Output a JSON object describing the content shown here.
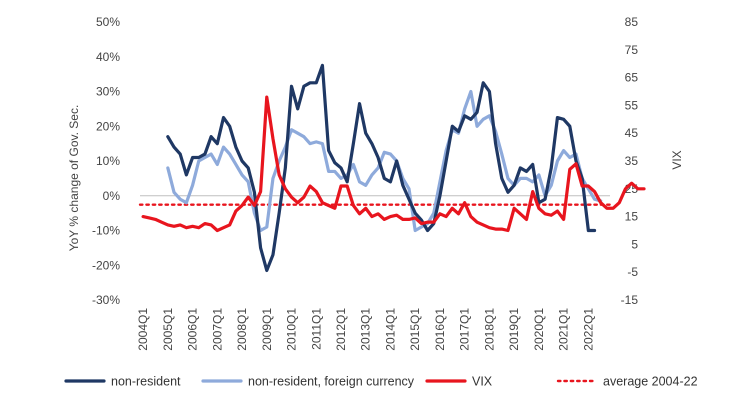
{
  "chart_data": {
    "type": "line",
    "ylabel_left": "YoY % change of Gov. Sec.",
    "ylabel_right": "VIX",
    "yticks_left": [
      "50%",
      "40%",
      "30%",
      "20%",
      "10%",
      "0%",
      "-10%",
      "-20%",
      "-30%"
    ],
    "yticks_left_values": [
      50,
      40,
      30,
      20,
      10,
      0,
      -10,
      -20,
      -30
    ],
    "yticks_right": [
      "85",
      "75",
      "65",
      "55",
      "45",
      "35",
      "25",
      "15",
      "5",
      "-5",
      "-15"
    ],
    "yticks_right_values": [
      85,
      75,
      65,
      55,
      45,
      35,
      25,
      15,
      5,
      -5,
      -15
    ],
    "ylim_left": [
      -30,
      50
    ],
    "ylim_right": [
      -15,
      85
    ],
    "xticks": [
      "2004Q1",
      "2005Q1",
      "2006Q1",
      "2007Q1",
      "2008Q1",
      "2009Q1",
      "2010Q1",
      "2011Q1",
      "2012Q1",
      "2013Q1",
      "2014Q1",
      "2015Q1",
      "2016Q1",
      "2017Q1",
      "2018Q1",
      "2019Q1",
      "2020Q1",
      "2021Q1",
      "2022Q1"
    ],
    "x_start": "2004Q1",
    "x_end": "2022Q4",
    "legend_position": "bottom",
    "series": [
      {
        "name": "non-resident",
        "axis": "left",
        "color": "#1f3864",
        "start": "2005Q1",
        "values": [
          17,
          14,
          12,
          6,
          11,
          11,
          12,
          17,
          15,
          22.5,
          20,
          14,
          10,
          8,
          1,
          -15,
          -21.5,
          -17,
          -5,
          8,
          31.5,
          25,
          31.5,
          32.5,
          32.5,
          37.5,
          13,
          9.5,
          8,
          4,
          15,
          26.5,
          18,
          15,
          11,
          5,
          4,
          10,
          3,
          -1,
          -5,
          -7,
          -10,
          -8,
          0,
          10,
          20,
          18.5,
          23,
          22,
          24,
          32.5,
          30,
          15,
          5,
          1,
          3,
          8,
          7,
          9,
          -2,
          -1,
          8,
          22.5,
          22,
          20,
          10,
          5,
          -10,
          -10
        ]
      },
      {
        "name": "non-resident, foreign currency",
        "axis": "left",
        "color": "#8eaadb",
        "start": "2005Q1",
        "values": [
          8,
          1,
          -1,
          -2,
          3,
          10,
          11,
          12,
          9,
          14,
          12,
          9,
          6,
          4,
          -5,
          -10,
          -9,
          5,
          10,
          14,
          19,
          18,
          17,
          15,
          15.5,
          15,
          7,
          7,
          5,
          6,
          9,
          4,
          3,
          6,
          8,
          12.5,
          12,
          10,
          5,
          2,
          -10,
          -9,
          -8,
          -5,
          4,
          13,
          19,
          18,
          25,
          30,
          20,
          22,
          23,
          18.5,
          12,
          5,
          3,
          5,
          5,
          4,
          6,
          0,
          3,
          10,
          13,
          11,
          12,
          5,
          2,
          -1,
          -1.5
        ]
      },
      {
        "name": "VIX",
        "axis": "right",
        "color": "#e8151e",
        "start": "2004Q1",
        "values": [
          15,
          14.5,
          14,
          13,
          12,
          11.5,
          12,
          11,
          11.5,
          11,
          12.5,
          12,
          10,
          11,
          12,
          17,
          19,
          22,
          19,
          24,
          58,
          43,
          30,
          25,
          22,
          20,
          22,
          26,
          24,
          20,
          19,
          18,
          26,
          26,
          19,
          16,
          18,
          15,
          16,
          14,
          15,
          15.5,
          14,
          14,
          14.5,
          12.5,
          13,
          13,
          16,
          15,
          18,
          16,
          20,
          15,
          13,
          12,
          11,
          10.5,
          10.5,
          10,
          18,
          16,
          14,
          24,
          18,
          16,
          15.5,
          17,
          14,
          32,
          34,
          26,
          26,
          24,
          20,
          18,
          18,
          20,
          25,
          27,
          25,
          25
        ]
      },
      {
        "name": "average 2004-22",
        "axis": "right",
        "color": "#e8151e",
        "style": "dotted",
        "constant": 19.3
      }
    ]
  }
}
